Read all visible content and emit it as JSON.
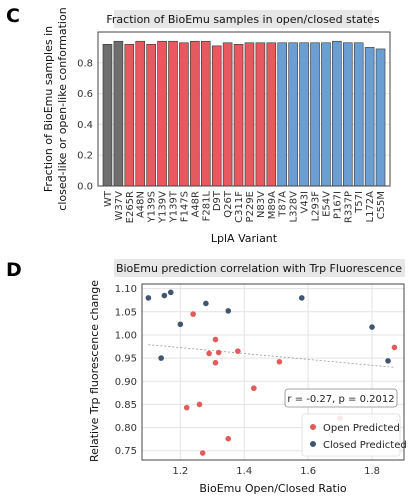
{
  "panel_c": {
    "letter": "C",
    "chart_data": {
      "type": "bar",
      "title": "Fraction of BioEmu samples in open/closed states",
      "xlabel": "LplA Variant",
      "ylabel_lines": [
        "Fraction of BioEmu samples in",
        "closed-like or open-like conformation"
      ],
      "ylim": [
        0,
        1.0
      ],
      "yticks": [
        0.0,
        0.2,
        0.4,
        0.6,
        0.8
      ],
      "grid": true,
      "categories": [
        "WT",
        "W37V",
        "E265R",
        "A48N",
        "Y139S",
        "Y139V",
        "Y139T",
        "F147S",
        "A48R",
        "F281L",
        "D9T",
        "Q26T",
        "C311F",
        "P229E",
        "N83V",
        "M89A",
        "T87A",
        "L328V",
        "V43I",
        "L293F",
        "E54V",
        "P167I",
        "R337P",
        "T57I",
        "L172A",
        "C55M"
      ],
      "values": [
        0.92,
        0.94,
        0.92,
        0.94,
        0.92,
        0.94,
        0.94,
        0.93,
        0.94,
        0.94,
        0.91,
        0.93,
        0.92,
        0.93,
        0.93,
        0.93,
        0.93,
        0.93,
        0.93,
        0.93,
        0.93,
        0.94,
        0.93,
        0.93,
        0.9,
        0.89
      ],
      "groups": [
        "gray",
        "gray",
        "red",
        "red",
        "red",
        "red",
        "red",
        "red",
        "red",
        "red",
        "red",
        "red",
        "red",
        "red",
        "red",
        "red",
        "blue",
        "blue",
        "blue",
        "blue",
        "blue",
        "blue",
        "blue",
        "blue",
        "blue",
        "blue"
      ],
      "colors": {
        "gray": "#6e6e6e",
        "red": "#e8595f",
        "blue": "#6b9fd4"
      }
    }
  },
  "panel_d": {
    "letter": "D",
    "chart_data": {
      "type": "scatter",
      "title": "BioEmu prediction correlation with Trp Fluorescence",
      "xlabel": "BioEmu Open/Closed Ratio",
      "ylabel": "Relative Trp fluorescence change",
      "xlim": [
        1.08,
        1.9
      ],
      "ylim": [
        0.73,
        1.11
      ],
      "xticks": [
        1.2,
        1.4,
        1.6,
        1.8
      ],
      "yticks": [
        0.75,
        0.8,
        0.85,
        0.9,
        0.95,
        1.0,
        1.05,
        1.1
      ],
      "grid": true,
      "legend_position": "bottom-right",
      "annotation": "r = -0.27, p = 0.2012",
      "trendline": {
        "x": [
          1.1,
          1.87
        ],
        "y": [
          0.979,
          0.93
        ]
      },
      "series": [
        {
          "name": "Open Predicted",
          "color": "#e05c5c",
          "x": [
            1.24,
            1.29,
            1.31,
            1.32,
            1.31,
            1.38,
            1.43,
            1.51,
            1.22,
            1.26,
            1.35,
            1.27,
            1.7,
            1.87
          ],
          "y": [
            1.045,
            0.96,
            0.99,
            0.962,
            0.94,
            0.965,
            0.885,
            0.942,
            0.843,
            0.85,
            0.776,
            0.745,
            0.82,
            0.973
          ]
        },
        {
          "name": "Closed Predicted",
          "color": "#3e5670",
          "x": [
            1.1,
            1.15,
            1.17,
            1.2,
            1.14,
            1.28,
            1.35,
            1.58,
            1.8,
            1.85
          ],
          "y": [
            1.08,
            1.085,
            1.092,
            1.023,
            0.95,
            1.068,
            1.052,
            1.08,
            1.017,
            0.944
          ]
        }
      ]
    }
  }
}
